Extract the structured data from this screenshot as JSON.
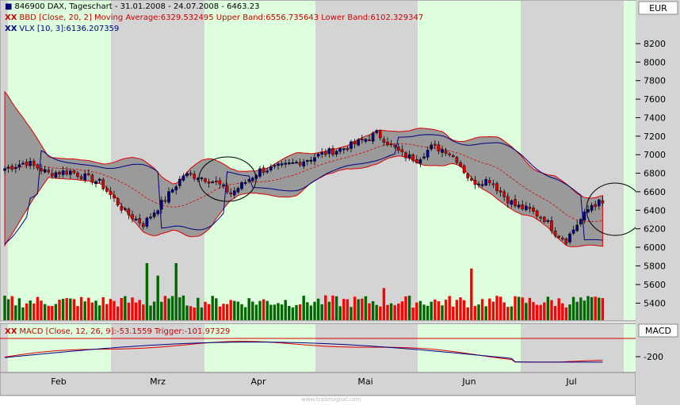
{
  "legend": {
    "price": "846900  DAX, Tageschart - 31.01.2008 - 24.07.2008 - 6463.23",
    "bollinger": "BBD [Close, 20, 2] Moving Average:6329.532495 Upper Band:6556.735643 Lower Band:6102.329347",
    "vlx": "VLX [10, 3]:6136.207359",
    "macd": "MACD [Close, 12, 26, 9]:-53.1559 Trigger:-101.97329",
    "marker_price": "■",
    "marker_ind": "XX"
  },
  "currency_label": "EUR",
  "macd_label": "MACD",
  "watermark": "www.tradesignal.com",
  "colors": {
    "up": "#000080",
    "down": "#dd0000",
    "band_fill": "#9a9a9a",
    "band_edge": "#dd0000",
    "ma": "#dd0000",
    "vlx": "#000080",
    "vol_up": "#006600",
    "vol_down": "#ff0000",
    "zone_green": "#ddffdd",
    "zone_gray": "#d4d4d4",
    "macd": "#000080",
    "trigger": "#dd0000"
  },
  "chart_data": {
    "type": "candlestick",
    "x_tick_labels": [
      "Feb",
      "Mrz",
      "Apr",
      "Mai",
      "Jun",
      "Jul"
    ],
    "price_axis": {
      "ticks": [
        8200,
        8000,
        7800,
        7600,
        7400,
        7200,
        7000,
        6800,
        6600,
        6400,
        6200,
        6000
      ],
      "range": [
        5950,
        8300
      ]
    },
    "volume_axis": {
      "ticks": [
        5800,
        5600,
        5400
      ]
    },
    "macd_axis": {
      "ticks": [
        -200
      ]
    },
    "close_path": [
      [
        0,
        6850
      ],
      [
        6,
        6920
      ],
      [
        12,
        6800
      ],
      [
        18,
        6820
      ],
      [
        26,
        6700
      ],
      [
        33,
        6380
      ],
      [
        38,
        6250
      ],
      [
        44,
        6520
      ],
      [
        49,
        6780
      ],
      [
        53,
        6770
      ],
      [
        58,
        6700
      ],
      [
        62,
        6580
      ],
      [
        70,
        6830
      ],
      [
        76,
        6870
      ],
      [
        83,
        6950
      ],
      [
        88,
        7020
      ],
      [
        93,
        7070
      ],
      [
        98,
        7150
      ],
      [
        102,
        7230
      ],
      [
        104,
        7170
      ],
      [
        109,
        7000
      ],
      [
        113,
        6950
      ],
      [
        117,
        7080
      ],
      [
        121,
        7050
      ],
      [
        124,
        6950
      ],
      [
        128,
        6700
      ],
      [
        133,
        6730
      ],
      [
        137,
        6550
      ],
      [
        140,
        6450
      ],
      [
        144,
        6400
      ],
      [
        148,
        6310
      ],
      [
        151,
        6160
      ],
      [
        154,
        6080
      ],
      [
        157,
        6250
      ],
      [
        159,
        6350
      ],
      [
        161,
        6460
      ],
      [
        163,
        6480
      ],
      [
        164,
        6463
      ]
    ],
    "series": [
      {
        "name": "BBD Moving Average",
        "last": 6329.532495
      },
      {
        "name": "BBD Upper Band",
        "last": 6556.735643
      },
      {
        "name": "BBD Lower Band",
        "last": 6102.329347
      },
      {
        "name": "VLX",
        "last": 6136.207359
      },
      {
        "name": "MACD",
        "last": -53.1559
      },
      {
        "name": "Trigger",
        "last": -101.97329
      }
    ],
    "annotations": [
      "circle around early April consolidation",
      "circle at latest bars"
    ],
    "grid": false
  }
}
